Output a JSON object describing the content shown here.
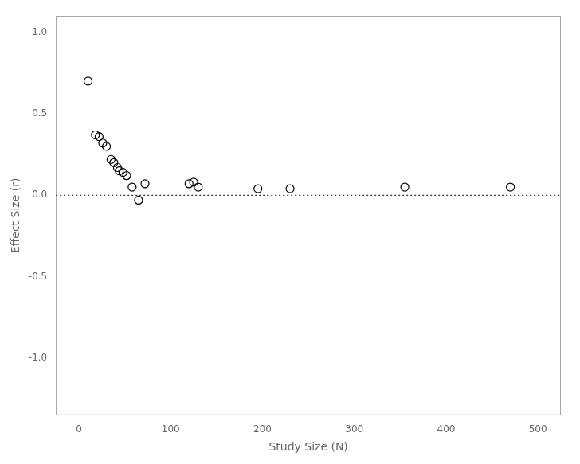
{
  "chart_data": {
    "type": "scatter",
    "x": [
      10,
      18,
      22,
      26,
      30,
      35,
      38,
      42,
      44,
      48,
      52,
      58,
      65,
      72,
      120,
      125,
      130,
      195,
      230,
      355,
      470
    ],
    "values": [
      0.7,
      0.37,
      0.36,
      0.32,
      0.3,
      0.22,
      0.2,
      0.17,
      0.15,
      0.14,
      0.12,
      0.05,
      -0.03,
      0.07,
      0.07,
      0.08,
      0.05,
      0.04,
      0.04,
      0.05,
      0.05
    ],
    "x_label": "Study Size (N)",
    "y_label": "Effect Size (r)",
    "xlim": [
      -25,
      525
    ],
    "ylim": [
      -1.35,
      1.1
    ],
    "xticks": [
      0,
      100,
      200,
      300,
      400,
      500
    ],
    "yticks": [
      {
        "value": -1.0,
        "label": "-1.0"
      },
      -0.5,
      {
        "value": 0.0,
        "label": "0.0"
      },
      0.5,
      {
        "value": 1.0,
        "label": "1.0"
      }
    ],
    "marker": "circle",
    "color": "#000000",
    "hline": {
      "y": 0.0,
      "line_style": "dotted",
      "color": "#000000"
    },
    "grid": false
  }
}
